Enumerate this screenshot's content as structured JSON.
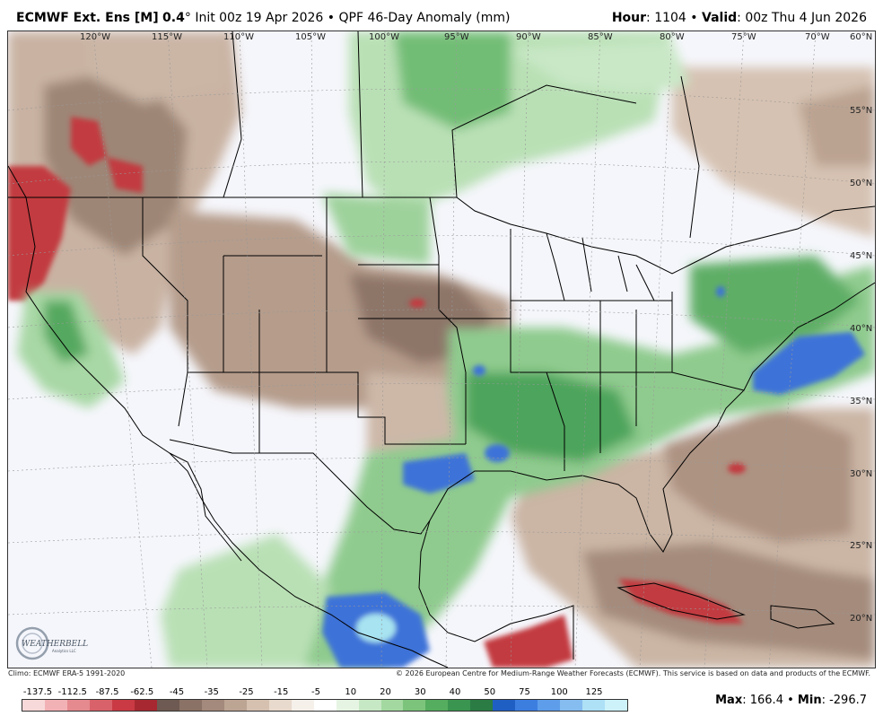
{
  "header": {
    "model": "ECMWF Ext. Ens [M]",
    "resolution": "0.4",
    "degree": "°",
    "init": "Init 00z 19 Apr 2026",
    "product": "QPF 46-Day Anomaly (mm)",
    "bullet": "•",
    "hour_label": "Hour",
    "hour_value": ": 1104",
    "valid_label": "Valid",
    "valid_value": ": 00z Thu 4 Jun 2026"
  },
  "map": {
    "longitude_labels": [
      "120°W",
      "115°W",
      "110°W",
      "105°W",
      "100°W",
      "95°W",
      "90°W",
      "85°W",
      "80°W",
      "75°W",
      "70°W",
      "60°N"
    ],
    "latitude_labels": [
      "55°N",
      "50°N",
      "45°N",
      "40°N",
      "35°N",
      "30°N",
      "25°N",
      "20°N"
    ],
    "logo_text": "WEATHERBELL",
    "logo_subtext": "Analytics LLC",
    "colors": {
      "background": "#f5f6fb",
      "dry_light": "#dcc8b8",
      "dry_medium": "#b9a08e",
      "dry_dark": "#7a6458",
      "dry_red": "#c0353a",
      "wet_light": "#c7e8c4",
      "wet_medium": "#7cc47c",
      "wet_dark": "#2f8f47",
      "wet_blue": "#3d6fd6",
      "wet_lightblue": "#a7e3f0",
      "border": "#000000"
    }
  },
  "footer": {
    "climo": "Climo: ECMWF ERA-5 1991-2020",
    "copyright": "© 2026 European Centre for Medium-Range Weather Forecasts (ECMWF). This service is based on data and products of the ECMWF.",
    "max_label": "Max",
    "max_value": ": 166.4",
    "min_label": "Min",
    "min_value": ": -296.7"
  },
  "legend": {
    "labels": [
      "-137.5",
      "-112.5",
      "-87.5",
      "-62.5",
      "-45",
      "-35",
      "-25",
      "-15",
      "-5",
      "10",
      "20",
      "30",
      "40",
      "50",
      "75",
      "100",
      "125"
    ],
    "colors": [
      "#f7d9da",
      "#f2b2b5",
      "#e58a8f",
      "#d9626a",
      "#c93a44",
      "#a72830",
      "#6e5a52",
      "#8a7266",
      "#a48a7c",
      "#bda594",
      "#d6c1b0",
      "#e8dacd",
      "#f6f0ea",
      "#ffffff",
      "#e6f5e3",
      "#c7e8c4",
      "#a3d9a0",
      "#7cc47c",
      "#55ad5f",
      "#3a9550",
      "#2a7c44",
      "#1f5fc4",
      "#3c7ee0",
      "#5e9dea",
      "#86bdf0",
      "#aee0f6",
      "#cdf2fa"
    ]
  }
}
